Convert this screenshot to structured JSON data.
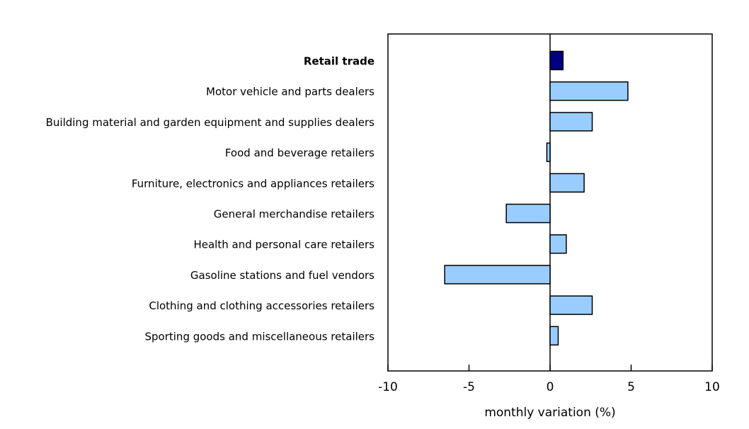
{
  "chart_data": {
    "type": "bar",
    "orientation": "horizontal",
    "title": "",
    "xlabel": "monthly variation (%)",
    "ylabel": "",
    "xlim": [
      -10,
      10
    ],
    "xticks": [
      -10,
      -5,
      0,
      5,
      10
    ],
    "xtick_labels": [
      "-10",
      "-5",
      "0",
      "5",
      "10"
    ],
    "grid": false,
    "categories": [
      "Retail trade",
      "Motor vehicle and parts dealers",
      "Building material and garden equipment and supplies dealers",
      "Food and beverage retailers",
      "Furniture, electronics and appliances retailers",
      "General merchandise retailers",
      "Health and personal care retailers",
      "Gasoline stations and fuel vendors",
      "Clothing and clothing accessories retailers",
      "Sporting goods and miscellaneous retailers"
    ],
    "values": [
      0.8,
      4.8,
      2.6,
      -0.2,
      2.1,
      -2.7,
      1.0,
      -6.5,
      2.6,
      0.5
    ],
    "highlight_index": 0,
    "colors": {
      "highlight": "#000080",
      "bar": "#99ccff",
      "outline": "#000000"
    }
  }
}
